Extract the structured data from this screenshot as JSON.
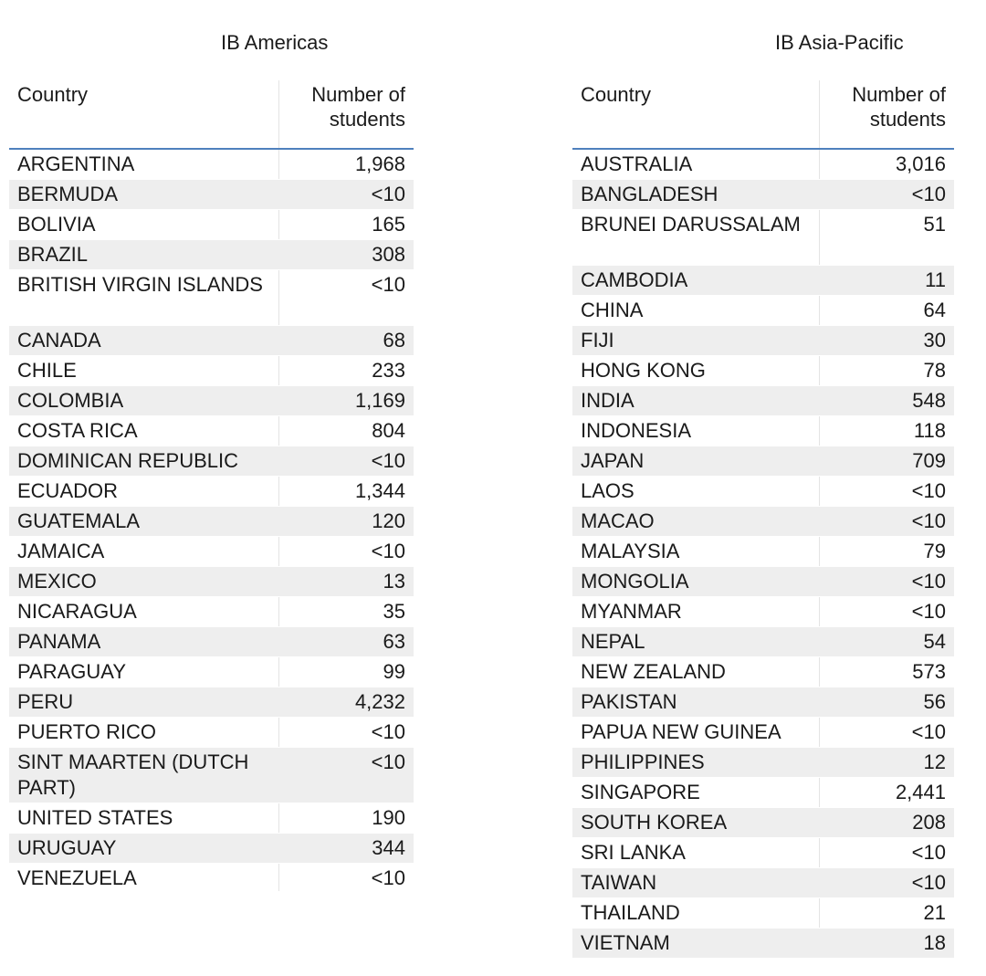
{
  "tables": [
    {
      "id": "americas",
      "title": "IB Americas",
      "col_country": "Country",
      "col_students": "Number of students",
      "rows": [
        {
          "country": "ARGENTINA",
          "students": "1,968"
        },
        {
          "country": "BERMUDA",
          "students": "<10"
        },
        {
          "country": "BOLIVIA",
          "students": "165"
        },
        {
          "country": "BRAZIL",
          "students": "308"
        },
        {
          "country": "BRITISH VIRGIN ISLANDS",
          "students": "<10"
        },
        {
          "country": "CANADA",
          "students": "68"
        },
        {
          "country": "CHILE",
          "students": "233"
        },
        {
          "country": "COLOMBIA",
          "students": "1,169"
        },
        {
          "country": "COSTA RICA",
          "students": "804"
        },
        {
          "country": "DOMINICAN REPUBLIC",
          "students": "<10"
        },
        {
          "country": "ECUADOR",
          "students": "1,344"
        },
        {
          "country": "GUATEMALA",
          "students": "120"
        },
        {
          "country": "JAMAICA",
          "students": "<10"
        },
        {
          "country": "MEXICO",
          "students": "13"
        },
        {
          "country": "NICARAGUA",
          "students": "35"
        },
        {
          "country": "PANAMA",
          "students": "63"
        },
        {
          "country": "PARAGUAY",
          "students": "99"
        },
        {
          "country": "PERU",
          "students": "4,232"
        },
        {
          "country": "PUERTO RICO",
          "students": "<10"
        },
        {
          "country": "SINT MAARTEN (DUTCH PART)",
          "students": "<10"
        },
        {
          "country": "UNITED STATES",
          "students": "190"
        },
        {
          "country": "URUGUAY",
          "students": "344"
        },
        {
          "country": "VENEZUELA",
          "students": "<10"
        }
      ]
    },
    {
      "id": "asia",
      "title": "IB Asia-Pacific",
      "col_country": "Country",
      "col_students": "Number of students",
      "rows": [
        {
          "country": "AUSTRALIA",
          "students": "3,016"
        },
        {
          "country": "BANGLADESH",
          "students": "<10"
        },
        {
          "country": "BRUNEI DARUSSALAM",
          "students": "51"
        },
        {
          "country": "CAMBODIA",
          "students": "11"
        },
        {
          "country": "CHINA",
          "students": "64"
        },
        {
          "country": "FIJI",
          "students": "30"
        },
        {
          "country": "HONG KONG",
          "students": "78"
        },
        {
          "country": "INDIA",
          "students": "548"
        },
        {
          "country": "INDONESIA",
          "students": "118"
        },
        {
          "country": "JAPAN",
          "students": "709"
        },
        {
          "country": "LAOS",
          "students": "<10"
        },
        {
          "country": "MACAO",
          "students": "<10"
        },
        {
          "country": "MALAYSIA",
          "students": "79"
        },
        {
          "country": "MONGOLIA",
          "students": "<10"
        },
        {
          "country": "MYANMAR",
          "students": "<10"
        },
        {
          "country": "NEPAL",
          "students": "54"
        },
        {
          "country": "NEW ZEALAND",
          "students": "573"
        },
        {
          "country": "PAKISTAN",
          "students": "56"
        },
        {
          "country": "PAPUA NEW GUINEA",
          "students": "<10"
        },
        {
          "country": "PHILIPPINES",
          "students": "12"
        },
        {
          "country": "SINGAPORE",
          "students": "2,441"
        },
        {
          "country": "SOUTH KOREA",
          "students": "208"
        },
        {
          "country": "SRI LANKA",
          "students": "<10"
        },
        {
          "country": "TAIWAN",
          "students": "<10"
        },
        {
          "country": "THAILAND",
          "students": "21"
        },
        {
          "country": "VIETNAM",
          "students": "18"
        }
      ]
    }
  ],
  "colors": {
    "header_rule": "#4f81bd",
    "zebra_row": "#eeeeee",
    "text": "#1a1a1a"
  }
}
